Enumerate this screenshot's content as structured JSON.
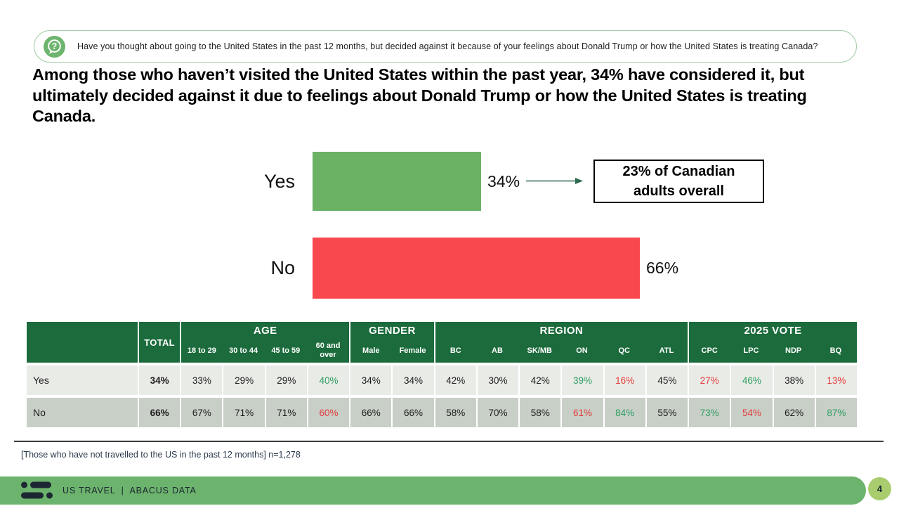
{
  "slide": {
    "question": "Have you thought about going to the United States in the past 12 months, but decided against it because of your feelings about Donald Trump or how the United States is treating Canada?",
    "headline": "Among those who haven’t visited the United States within the past year, 34% have considered it, but ultimately decided against it due to feelings about Donald Trump or how the United States is treating Canada.",
    "footnote": "[Those who have not travelled to the US in the past 12 months] n=1,278",
    "footer_brand": "US TRAVEL  |  ABACUS DATA",
    "page_number": "4"
  },
  "chart_data": {
    "type": "bar",
    "orientation": "horizontal",
    "categories": [
      "Yes",
      "No"
    ],
    "values": [
      34,
      66
    ],
    "value_labels": [
      "34%",
      "66%"
    ],
    "bar_colors": [
      "#6bb265",
      "#f9494e"
    ],
    "xlim": [
      0,
      100
    ],
    "grid": false,
    "annotation": "23% of Canadian adults overall"
  },
  "callout": {
    "text": "23% of Canadian adults overall"
  },
  "table": {
    "total_label": "TOTAL",
    "groups": [
      {
        "label": "AGE",
        "cols": [
          "18 to 29",
          "30 to 44",
          "45 to 59",
          "60 and over"
        ]
      },
      {
        "label": "GENDER",
        "cols": [
          "Male",
          "Female"
        ]
      },
      {
        "label": "REGION",
        "cols": [
          "BC",
          "AB",
          "SK/MB",
          "ON",
          "QC",
          "ATL"
        ]
      },
      {
        "label": "2025 VOTE",
        "cols": [
          "CPC",
          "LPC",
          "NDP",
          "BQ"
        ]
      }
    ],
    "rows": [
      {
        "label": "Yes",
        "total": "34%",
        "cells": [
          {
            "t": "33%"
          },
          {
            "t": "29%"
          },
          {
            "t": "29%"
          },
          {
            "t": "40%",
            "c": "green"
          },
          {
            "t": "34%"
          },
          {
            "t": "34%"
          },
          {
            "t": "42%"
          },
          {
            "t": "30%"
          },
          {
            "t": "42%"
          },
          {
            "t": "39%",
            "c": "green"
          },
          {
            "t": "16%",
            "c": "red"
          },
          {
            "t": "45%"
          },
          {
            "t": "27%",
            "c": "red"
          },
          {
            "t": "46%",
            "c": "green"
          },
          {
            "t": "38%"
          },
          {
            "t": "13%",
            "c": "red"
          }
        ]
      },
      {
        "label": "No",
        "total": "66%",
        "cells": [
          {
            "t": "67%"
          },
          {
            "t": "71%"
          },
          {
            "t": "71%"
          },
          {
            "t": "60%",
            "c": "red"
          },
          {
            "t": "66%"
          },
          {
            "t": "66%"
          },
          {
            "t": "58%"
          },
          {
            "t": "70%"
          },
          {
            "t": "58%"
          },
          {
            "t": "61%",
            "c": "red"
          },
          {
            "t": "84%",
            "c": "green"
          },
          {
            "t": "55%"
          },
          {
            "t": "73%",
            "c": "green"
          },
          {
            "t": "54%",
            "c": "red"
          },
          {
            "t": "62%"
          },
          {
            "t": "87%",
            "c": "green"
          }
        ]
      }
    ]
  },
  "colors": {
    "header_green": "#1c6b3c",
    "bar_green": "#6bb265",
    "bar_red": "#f9494e",
    "row_light": "#e9ebe6",
    "row_dark": "#c8cfc7",
    "positive_text": "#2e9e62",
    "negative_text": "#e43b3c",
    "footer_green": "#6cb46d",
    "page_circle_green": "#a9cd6e",
    "navy": "#1d2733",
    "arrow_green": "#2c6b4f",
    "question_border": "#a3cda6",
    "question_icon_green": "#6db56f"
  }
}
